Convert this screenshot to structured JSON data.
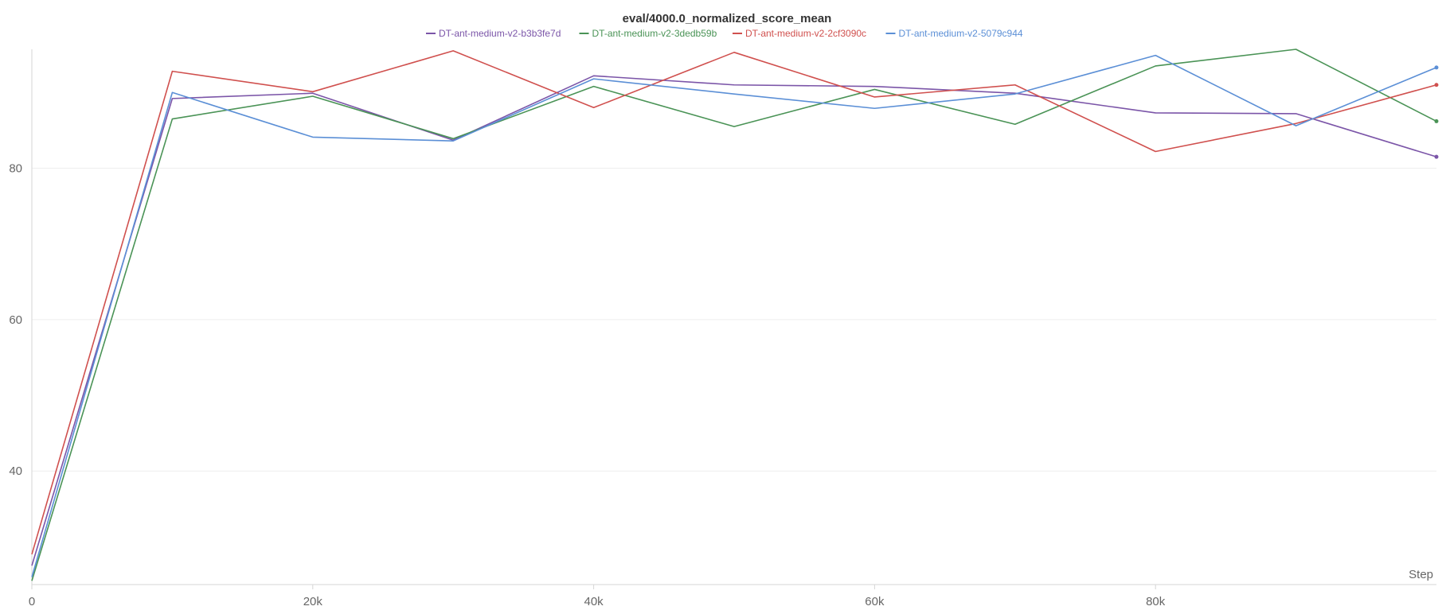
{
  "chart_data": {
    "type": "line",
    "title": "eval/4000.0_normalized_score_mean",
    "xlabel": "Step",
    "ylabel": "",
    "xlim": [
      0,
      100000
    ],
    "ylim": [
      25,
      95.7
    ],
    "x_ticks": [
      {
        "value": 0,
        "label": "0"
      },
      {
        "value": 20000,
        "label": "20k"
      },
      {
        "value": 40000,
        "label": "40k"
      },
      {
        "value": 60000,
        "label": "60k"
      },
      {
        "value": 80000,
        "label": "80k"
      }
    ],
    "y_ticks": [
      {
        "value": 40,
        "label": "40"
      },
      {
        "value": 60,
        "label": "60"
      },
      {
        "value": 80,
        "label": "80"
      }
    ],
    "grid": true,
    "legend_position": "top",
    "x": [
      0,
      10000,
      20000,
      30000,
      40000,
      50000,
      60000,
      70000,
      80000,
      90000,
      100000
    ],
    "series": [
      {
        "name": "DT-ant-medium-v2-b3b3fe7d",
        "color": "#7b55a8",
        "values": [
          27.5,
          89.2,
          89.9,
          83.7,
          92.2,
          91.0,
          90.8,
          89.9,
          87.3,
          87.2,
          81.5
        ]
      },
      {
        "name": "DT-ant-medium-v2-3dedb59b",
        "color": "#4a9356",
        "values": [
          25.5,
          86.5,
          89.5,
          83.9,
          90.8,
          85.5,
          90.4,
          85.8,
          93.5,
          95.7,
          86.2
        ]
      },
      {
        "name": "DT-ant-medium-v2-2cf3090c",
        "color": "#d0504e",
        "values": [
          29.0,
          92.8,
          90.1,
          95.5,
          88.0,
          95.3,
          89.4,
          91.0,
          82.2,
          85.9,
          91.0
        ]
      },
      {
        "name": "DT-ant-medium-v2-5079c944",
        "color": "#5b8fd6",
        "values": [
          26.0,
          90.0,
          84.1,
          83.6,
          91.8,
          89.8,
          87.9,
          89.8,
          94.9,
          85.6,
          93.3
        ]
      }
    ]
  }
}
